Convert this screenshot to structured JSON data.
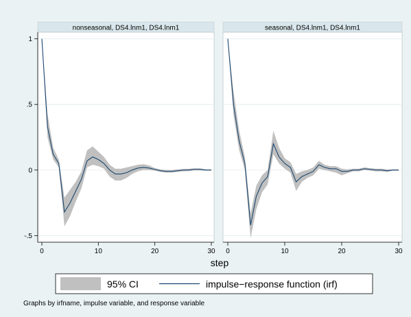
{
  "chart_data": {
    "type": "line",
    "xlabel": "step",
    "x_ticks": [
      0,
      10,
      20,
      30
    ],
    "y_ticks": [
      -0.5,
      0,
      0.5,
      1
    ],
    "y_tick_labels": [
      "-.5",
      "0",
      ".5",
      "1"
    ],
    "xlim": [
      0,
      30
    ],
    "ylim": [
      -0.55,
      1.05
    ],
    "grid": true,
    "legend": {
      "position": "bottom",
      "entries": [
        {
          "label": "95% CI",
          "symbol": "area",
          "color": "#c0c0c0"
        },
        {
          "label": "impulse−response function (irf)",
          "symbol": "line",
          "color": "#1a476f"
        }
      ]
    },
    "note": "Graphs by irfname, impulse variable, and response variable",
    "colors": {
      "line": "#1a476f",
      "band": "#c0c0c0",
      "plot_bg": "#ffffff",
      "outer_bg": "#eaf2f3",
      "strip_bg": "#d9e6eb"
    },
    "panels": [
      {
        "title": "nonseasonal, DS4.lnm1, DS4.lnm1",
        "x": [
          0,
          1,
          2,
          3,
          4,
          5,
          6,
          7,
          8,
          9,
          10,
          11,
          12,
          13,
          14,
          15,
          16,
          17,
          18,
          19,
          20,
          21,
          22,
          23,
          24,
          25,
          26,
          27,
          28,
          29,
          30
        ],
        "irf": [
          1.0,
          0.33,
          0.12,
          0.05,
          -0.32,
          -0.25,
          -0.16,
          -0.07,
          0.07,
          0.1,
          0.08,
          0.05,
          0.0,
          -0.03,
          -0.03,
          -0.02,
          0.0,
          0.015,
          0.02,
          0.015,
          0.005,
          -0.005,
          -0.01,
          -0.01,
          -0.005,
          0.0,
          0.0,
          0.005,
          0.005,
          0.0,
          0.0
        ],
        "lower": [
          1.0,
          0.25,
          0.08,
          0.02,
          -0.43,
          -0.35,
          -0.24,
          -0.14,
          0.02,
          0.04,
          0.03,
          0.01,
          -0.05,
          -0.08,
          -0.08,
          -0.06,
          -0.03,
          -0.01,
          0.0,
          0.0,
          -0.005,
          -0.015,
          -0.02,
          -0.02,
          -0.015,
          -0.01,
          -0.008,
          -0.003,
          -0.003,
          -0.005,
          -0.005
        ],
        "upper": [
          1.0,
          0.43,
          0.17,
          0.08,
          -0.21,
          -0.15,
          -0.09,
          -0.01,
          0.15,
          0.18,
          0.14,
          0.1,
          0.04,
          0.01,
          0.01,
          0.02,
          0.03,
          0.04,
          0.045,
          0.035,
          0.015,
          0.005,
          0.0,
          0.0,
          0.005,
          0.008,
          0.01,
          0.013,
          0.013,
          0.005,
          0.005
        ]
      },
      {
        "title": "seasonal, DS4.lnm1, DS4.lnm1",
        "x": [
          0,
          1,
          2,
          3,
          4,
          5,
          6,
          7,
          8,
          9,
          10,
          11,
          12,
          13,
          14,
          15,
          16,
          17,
          18,
          19,
          20,
          21,
          22,
          23,
          24,
          25,
          26,
          27,
          28,
          29,
          30
        ],
        "irf": [
          1.0,
          0.5,
          0.22,
          0.05,
          -0.42,
          -0.2,
          -0.1,
          -0.05,
          0.2,
          0.1,
          0.05,
          0.02,
          -0.09,
          -0.05,
          -0.03,
          -0.01,
          0.04,
          0.02,
          0.01,
          0.01,
          -0.01,
          -0.01,
          0.0,
          0.0,
          0.01,
          0.005,
          0.0,
          0.0,
          -0.005,
          0.0,
          0.0
        ],
        "lower": [
          1.0,
          0.42,
          0.15,
          0.0,
          -0.52,
          -0.3,
          -0.17,
          -0.11,
          0.12,
          0.05,
          0.01,
          -0.02,
          -0.16,
          -0.09,
          -0.06,
          -0.04,
          0.01,
          0.0,
          -0.01,
          -0.02,
          -0.04,
          -0.025,
          -0.01,
          -0.01,
          0.0,
          -0.005,
          -0.01,
          -0.01,
          -0.015,
          -0.005,
          -0.005
        ],
        "upper": [
          1.0,
          0.6,
          0.3,
          0.1,
          -0.33,
          -0.12,
          -0.04,
          0.0,
          0.3,
          0.17,
          0.09,
          0.06,
          -0.03,
          -0.01,
          0.0,
          0.02,
          0.07,
          0.04,
          0.03,
          0.03,
          0.01,
          0.005,
          0.01,
          0.01,
          0.02,
          0.015,
          0.01,
          0.01,
          0.005,
          0.005,
          0.005
        ]
      }
    ]
  }
}
